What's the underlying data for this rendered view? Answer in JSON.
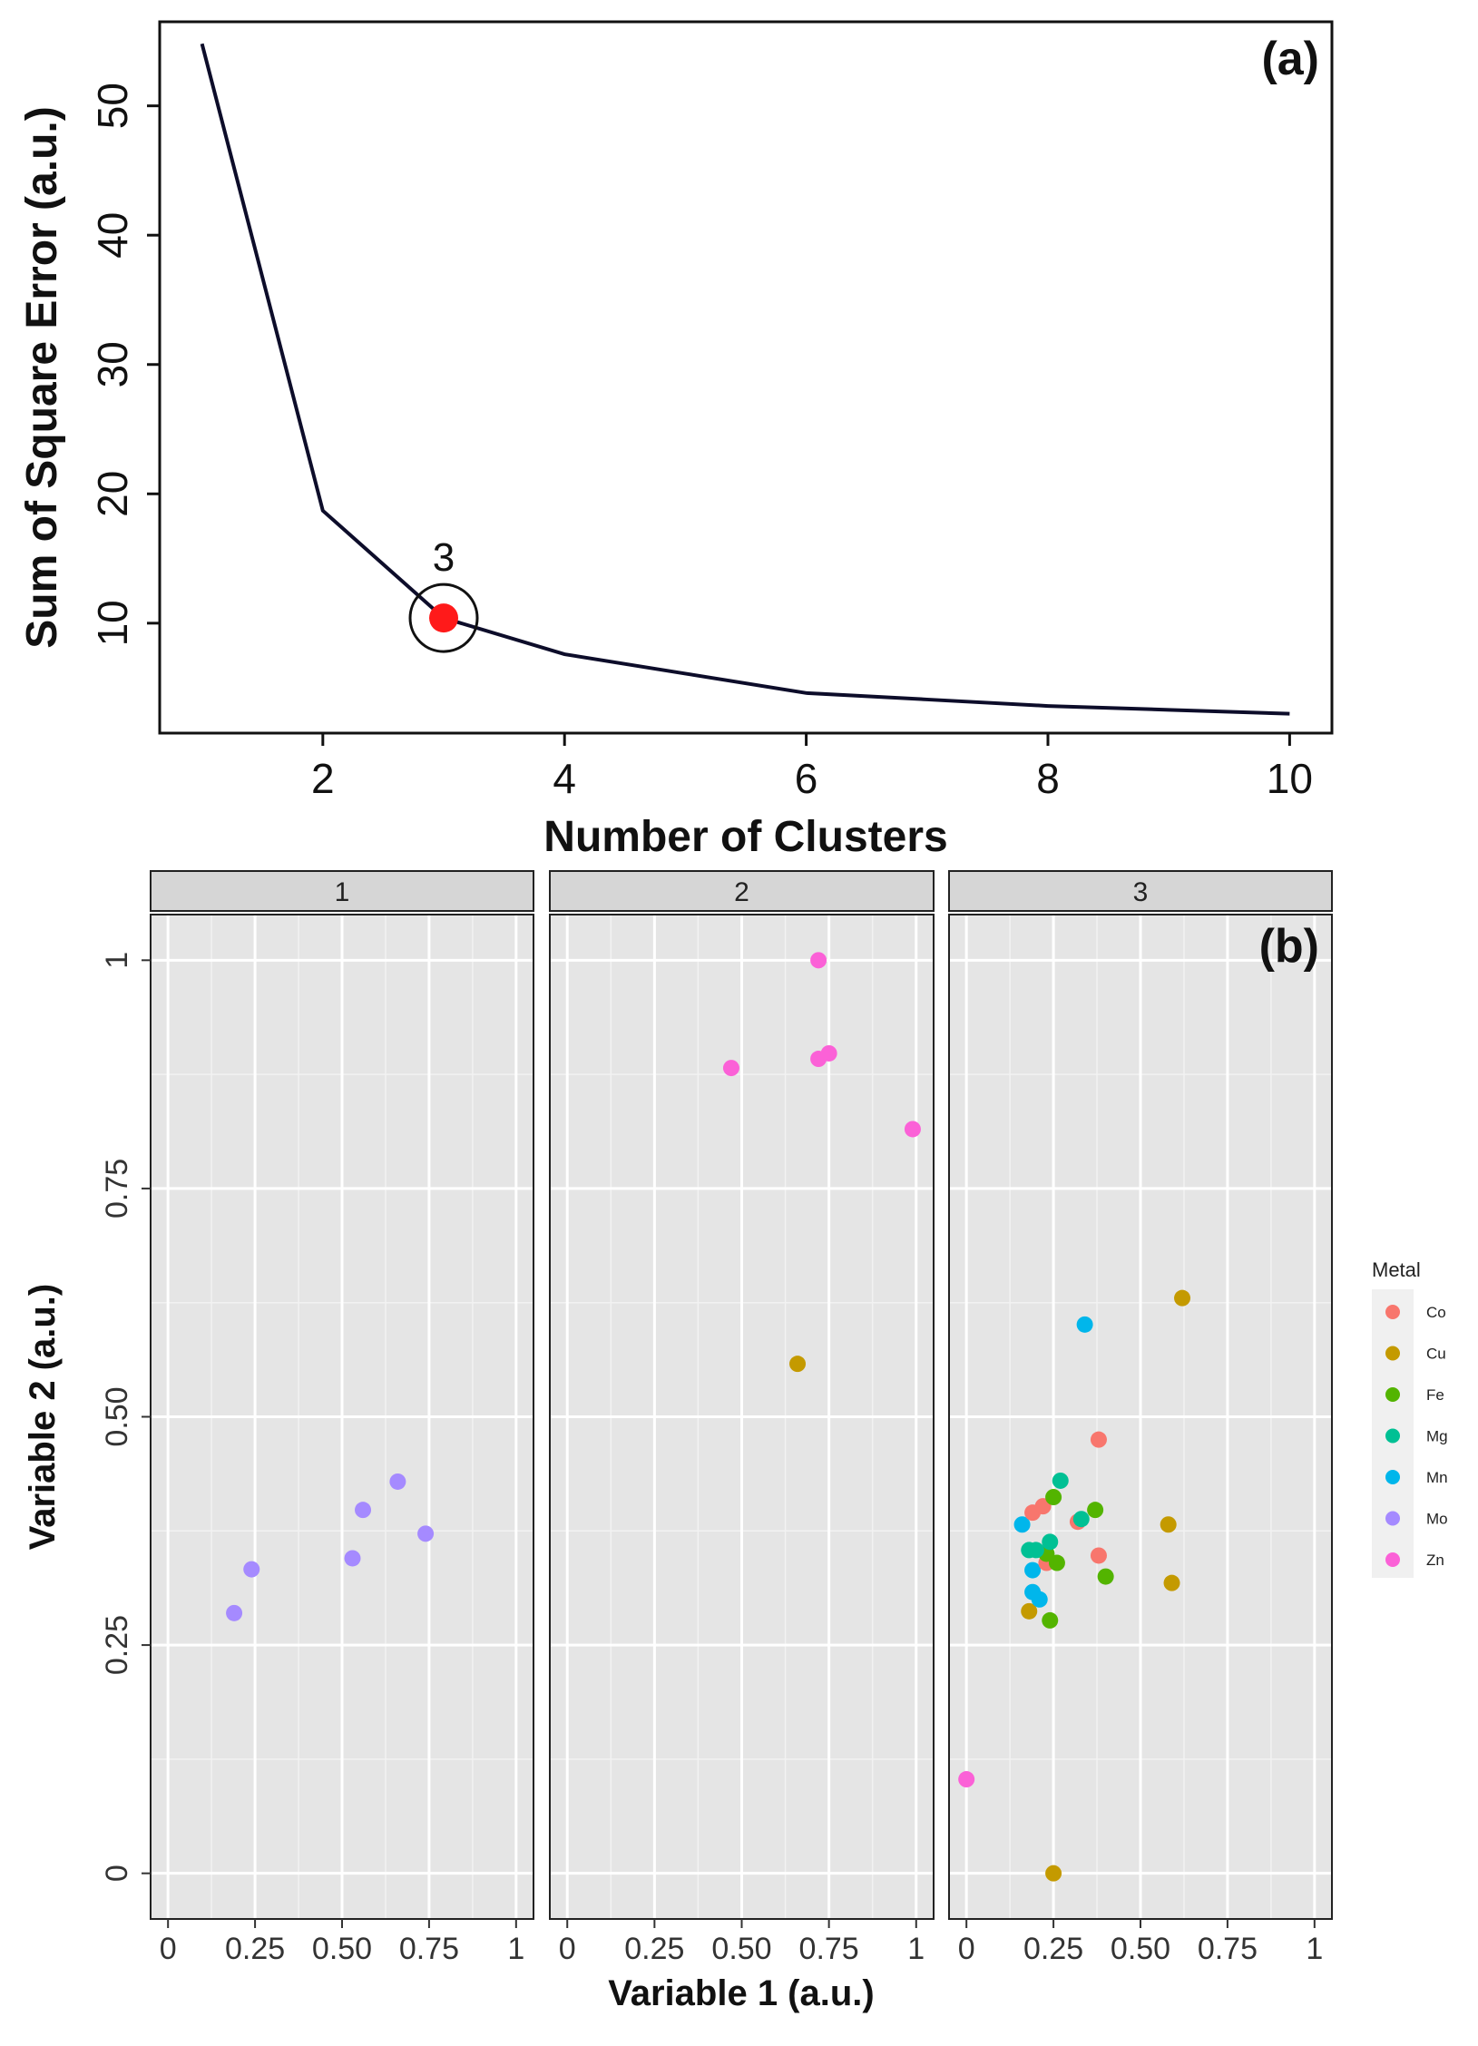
{
  "chart_data": [
    {
      "type": "line",
      "panel_label": "(a)",
      "xlabel": "Number of Clusters",
      "ylabel": "Sum of Square Error (a.u.)",
      "x": [
        1,
        2,
        3,
        4,
        5,
        6,
        7,
        8,
        9,
        10
      ],
      "y": [
        54.8,
        18.7,
        10.4,
        7.6,
        6.1,
        4.6,
        4.1,
        3.6,
        3.3,
        3.0
      ],
      "xlim": [
        0.65,
        10.35
      ],
      "ylim": [
        1.5,
        56.5
      ],
      "xticks": [
        "2",
        "4",
        "6",
        "8",
        "10"
      ],
      "xtick_values": [
        2,
        4,
        6,
        8,
        10
      ],
      "yticks": [
        "10",
        "20",
        "30",
        "40",
        "50"
      ],
      "ytick_values": [
        10,
        20,
        30,
        40,
        50
      ],
      "line_color": "#0d0d2a",
      "highlight": {
        "x": 3,
        "y": 10.4,
        "label": "3",
        "color": "#ff1a1a"
      }
    },
    {
      "type": "scatter",
      "panel_label": "(b)",
      "xlabel": "Variable 1 (a.u.)",
      "ylabel": "Variable 2 (a.u.)",
      "facets": [
        "1",
        "2",
        "3"
      ],
      "xlim": [
        -0.05,
        1.05
      ],
      "ylim": [
        -0.05,
        1.05
      ],
      "xticks": [
        "0",
        "0.25",
        "0.50",
        "0.75",
        "1"
      ],
      "xtick_values": [
        0,
        0.25,
        0.5,
        0.75,
        1
      ],
      "yticks": [
        "0",
        "0.25",
        "0.50",
        "0.75",
        "1"
      ],
      "ytick_values": [
        0,
        0.25,
        0.5,
        0.75,
        1
      ],
      "panel_bg": "#e5e5e5",
      "strip_bg": "#d6d6d6",
      "legend": {
        "title": "Metal",
        "items": [
          {
            "name": "Co",
            "color": "#f8766d"
          },
          {
            "name": "Cu",
            "color": "#c49a00"
          },
          {
            "name": "Fe",
            "color": "#53b400"
          },
          {
            "name": "Mg",
            "color": "#00c094"
          },
          {
            "name": "Mn",
            "color": "#00b6eb"
          },
          {
            "name": "Mo",
            "color": "#a58aff"
          },
          {
            "name": "Zn",
            "color": "#fb61d7"
          }
        ]
      },
      "points": [
        {
          "facet": "1",
          "metal": "Mo",
          "x": 0.19,
          "y": 0.285
        },
        {
          "facet": "1",
          "metal": "Mo",
          "x": 0.24,
          "y": 0.333
        },
        {
          "facet": "1",
          "metal": "Mo",
          "x": 0.53,
          "y": 0.345
        },
        {
          "facet": "1",
          "metal": "Mo",
          "x": 0.56,
          "y": 0.398
        },
        {
          "facet": "1",
          "metal": "Mo",
          "x": 0.66,
          "y": 0.429
        },
        {
          "facet": "1",
          "metal": "Mo",
          "x": 0.74,
          "y": 0.372
        },
        {
          "facet": "2",
          "metal": "Zn",
          "x": 0.47,
          "y": 0.882
        },
        {
          "facet": "2",
          "metal": "Zn",
          "x": 0.72,
          "y": 0.892
        },
        {
          "facet": "2",
          "metal": "Zn",
          "x": 0.75,
          "y": 0.898
        },
        {
          "facet": "2",
          "metal": "Zn",
          "x": 0.72,
          "y": 1.0
        },
        {
          "facet": "2",
          "metal": "Zn",
          "x": 0.99,
          "y": 0.815
        },
        {
          "facet": "2",
          "metal": "Cu",
          "x": 0.66,
          "y": 0.558
        },
        {
          "facet": "3",
          "metal": "Cu",
          "x": 0.62,
          "y": 0.63
        },
        {
          "facet": "3",
          "metal": "Cu",
          "x": 0.58,
          "y": 0.382
        },
        {
          "facet": "3",
          "metal": "Cu",
          "x": 0.59,
          "y": 0.318
        },
        {
          "facet": "3",
          "metal": "Cu",
          "x": 0.18,
          "y": 0.287
        },
        {
          "facet": "3",
          "metal": "Cu",
          "x": 0.25,
          "y": 0.0
        },
        {
          "facet": "3",
          "metal": "Mn",
          "x": 0.34,
          "y": 0.601
        },
        {
          "facet": "3",
          "metal": "Mn",
          "x": 0.16,
          "y": 0.382
        },
        {
          "facet": "3",
          "metal": "Mn",
          "x": 0.19,
          "y": 0.332
        },
        {
          "facet": "3",
          "metal": "Mn",
          "x": 0.19,
          "y": 0.308
        },
        {
          "facet": "3",
          "metal": "Mn",
          "x": 0.21,
          "y": 0.3
        },
        {
          "facet": "3",
          "metal": "Co",
          "x": 0.38,
          "y": 0.475
        },
        {
          "facet": "3",
          "metal": "Co",
          "x": 0.19,
          "y": 0.395
        },
        {
          "facet": "3",
          "metal": "Co",
          "x": 0.22,
          "y": 0.402
        },
        {
          "facet": "3",
          "metal": "Co",
          "x": 0.32,
          "y": 0.385
        },
        {
          "facet": "3",
          "metal": "Co",
          "x": 0.23,
          "y": 0.34
        },
        {
          "facet": "3",
          "metal": "Co",
          "x": 0.38,
          "y": 0.348
        },
        {
          "facet": "3",
          "metal": "Fe",
          "x": 0.25,
          "y": 0.412
        },
        {
          "facet": "3",
          "metal": "Fe",
          "x": 0.37,
          "y": 0.398
        },
        {
          "facet": "3",
          "metal": "Fe",
          "x": 0.23,
          "y": 0.35
        },
        {
          "facet": "3",
          "metal": "Fe",
          "x": 0.26,
          "y": 0.34
        },
        {
          "facet": "3",
          "metal": "Fe",
          "x": 0.4,
          "y": 0.325
        },
        {
          "facet": "3",
          "metal": "Fe",
          "x": 0.24,
          "y": 0.277
        },
        {
          "facet": "3",
          "metal": "Mg",
          "x": 0.27,
          "y": 0.43
        },
        {
          "facet": "3",
          "metal": "Mg",
          "x": 0.33,
          "y": 0.388
        },
        {
          "facet": "3",
          "metal": "Mg",
          "x": 0.24,
          "y": 0.363
        },
        {
          "facet": "3",
          "metal": "Mg",
          "x": 0.18,
          "y": 0.354
        },
        {
          "facet": "3",
          "metal": "Mg",
          "x": 0.2,
          "y": 0.354
        },
        {
          "facet": "3",
          "metal": "Zn",
          "x": 0.0,
          "y": 0.103
        }
      ]
    }
  ]
}
